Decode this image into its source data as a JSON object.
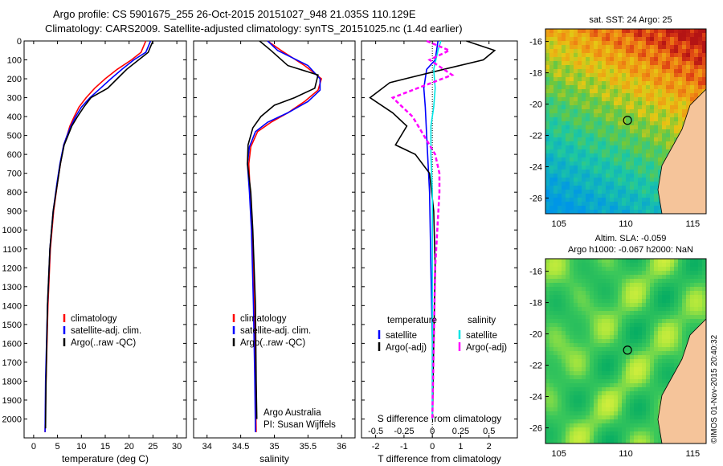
{
  "header": {
    "line1": "Argo profile: CS 5901675_255 26-Oct-2015 20151027_948 21.035S 110.129E",
    "line2": "Climatology: CARS2009. Satellite-adjusted climatology: synTS_20151025.nc (1.4d earlier)"
  },
  "colors": {
    "climatology": "#ff0000",
    "satellite": "#0000ff",
    "argo": "#000000",
    "sat_salinity": "#00e5e5",
    "argo_adj_salinity": "#ff00ff"
  },
  "chart_data": [
    {
      "type": "line",
      "id": "temperature",
      "xlabel": "temperature (deg C)",
      "xlim": [
        -2,
        32
      ],
      "xticks": [
        "0",
        "5",
        "10",
        "15",
        "20",
        "25",
        "30"
      ],
      "ylim": [
        0,
        2100
      ],
      "yticks": [
        "0",
        "100",
        "200",
        "300",
        "400",
        "500",
        "600",
        "700",
        "800",
        "900",
        "1000",
        "1100",
        "1200",
        "1300",
        "1400",
        "1500",
        "1600",
        "1700",
        "1800",
        "1900",
        "2000"
      ],
      "yreversed": true,
      "legend": {
        "placement": "lower-center",
        "entries": [
          "climatology",
          "satellite-adj. clim.",
          "Argo(..raw -QC)"
        ]
      },
      "series": [
        {
          "name": "climatology",
          "x": [
            23.5,
            23,
            22.5,
            20.5,
            17.5,
            15,
            12.8,
            11,
            9.5,
            8.5,
            7.6,
            7,
            6.3,
            5.6,
            5,
            4.2,
            3.5,
            3,
            2.6,
            2.4
          ],
          "y": [
            0,
            30,
            60,
            100,
            150,
            200,
            250,
            300,
            350,
            400,
            450,
            500,
            550,
            650,
            750,
            900,
            1100,
            1400,
            1800,
            2070
          ]
        },
        {
          "name": "satellite-adj. clim.",
          "x": [
            24.5,
            24,
            23.5,
            21,
            18.5,
            16.2,
            14,
            11.8,
            10,
            8.8,
            7.8,
            7,
            6.3,
            5.5,
            4.9,
            4.1,
            3.4,
            2.9,
            2.5,
            2.4
          ],
          "y": [
            0,
            30,
            60,
            100,
            150,
            200,
            250,
            300,
            350,
            400,
            450,
            500,
            550,
            650,
            750,
            900,
            1100,
            1400,
            1800,
            2070
          ]
        },
        {
          "name": "Argo(..raw -QC)",
          "x": [
            25,
            24.5,
            24,
            22,
            19.5,
            17.5,
            15.5,
            12,
            10.5,
            9.2,
            8,
            7.2,
            6.4,
            5.6,
            5,
            4.1,
            3.4,
            2.9,
            2.6,
            2.5
          ],
          "y": [
            0,
            30,
            60,
            100,
            150,
            200,
            250,
            300,
            350,
            400,
            450,
            500,
            550,
            650,
            750,
            900,
            1100,
            1400,
            1800,
            2050
          ]
        }
      ]
    },
    {
      "type": "line",
      "id": "salinity",
      "xlabel": "salinity",
      "xlim": [
        33.8,
        36.2
      ],
      "xticks": [
        "34",
        "34.5",
        "35",
        "35.5",
        "36"
      ],
      "ylim": [
        0,
        2100
      ],
      "yreversed": true,
      "legend": {
        "placement": "lower-center",
        "entries": [
          "climatology",
          "satellite-adj. clim.",
          "Argo(..raw -QC)"
        ]
      },
      "annotations": [
        "Argo Australia",
        "PI: Susan Wijffels"
      ],
      "series": [
        {
          "name": "climatology",
          "x": [
            34.9,
            35.1,
            35.45,
            35.7,
            35.65,
            35.45,
            35.2,
            34.95,
            34.75,
            34.65,
            34.62,
            34.64,
            34.67,
            34.7,
            34.72,
            34.73
          ],
          "y": [
            0,
            50,
            130,
            200,
            260,
            320,
            380,
            430,
            480,
            560,
            650,
            800,
            1000,
            1400,
            1800,
            2070
          ]
        },
        {
          "name": "satellite-adj. clim.",
          "x": [
            34.9,
            35.05,
            35.5,
            35.68,
            35.68,
            35.5,
            35.2,
            34.9,
            34.72,
            34.63,
            34.6,
            34.63,
            34.66,
            34.69,
            34.71,
            34.72
          ],
          "y": [
            0,
            50,
            130,
            200,
            260,
            320,
            380,
            430,
            480,
            560,
            650,
            800,
            1000,
            1400,
            1800,
            2070
          ]
        },
        {
          "name": "Argo(..raw -QC)",
          "x": [
            34.78,
            34.95,
            35.2,
            35.65,
            35.6,
            35.3,
            35.0,
            34.8,
            34.68,
            34.61,
            34.6,
            34.65,
            34.68,
            34.72,
            34.73,
            34.74
          ],
          "y": [
            0,
            50,
            130,
            180,
            250,
            300,
            340,
            400,
            460,
            550,
            650,
            800,
            1000,
            1400,
            1800,
            2000
          ]
        }
      ]
    },
    {
      "type": "line",
      "id": "difference",
      "xlabel": "T difference from climatology",
      "xlabel_top": "S difference from climatology",
      "xlim": [
        -2.5,
        3
      ],
      "xticks": [
        "-2",
        "-1",
        "0",
        "1",
        "2"
      ],
      "sticks": [
        "-0.5",
        "-0.25",
        "0",
        "0.25",
        "0.5"
      ],
      "ylim": [
        0,
        2100
      ],
      "yreversed": true,
      "legend": {
        "placement": "lower-center",
        "temperature_header": "temperature",
        "salinity_header": "salinity",
        "entries": [
          "satellite",
          "Argo(-adj)",
          "satellite",
          "Argo(-adj)"
        ]
      },
      "series": [
        {
          "name": "temperature satellite",
          "x": [
            0.2,
            0.15,
            0.1,
            -0.2,
            -0.3,
            -0.25,
            -0.2,
            -0.15,
            -0.1,
            -0.05,
            0,
            0
          ],
          "y": [
            0,
            50,
            100,
            150,
            250,
            350,
            500,
            650,
            800,
            1200,
            1600,
            2000
          ]
        },
        {
          "name": "temperature Argo(-adj)",
          "x": [
            1.2,
            2.2,
            1.8,
            0.4,
            -1.5,
            -2.2,
            -1.4,
            -0.9,
            -1.3,
            -0.6,
            -0.1,
            0.05,
            0.1,
            0.05,
            0
          ],
          "y": [
            0,
            50,
            100,
            150,
            220,
            300,
            380,
            450,
            550,
            600,
            700,
            900,
            1200,
            1600,
            2000
          ]
        },
        {
          "name": "salinity satellite",
          "x": [
            0.3,
            0.2,
            0.05,
            0.1,
            0.05,
            -0.05,
            -0.05,
            0,
            0,
            0
          ],
          "y": [
            0,
            50,
            150,
            250,
            350,
            450,
            600,
            800,
            1200,
            2000
          ]
        },
        {
          "name": "salinity Argo(-adj)",
          "x": [
            -0.2,
            0.6,
            -0.1,
            0.7,
            -1.4,
            -0.7,
            -0.3,
            0.1,
            0.25,
            0.25,
            0.1,
            0
          ],
          "y": [
            0,
            50,
            100,
            180,
            300,
            400,
            500,
            600,
            700,
            800,
            1200,
            2000
          ]
        }
      ]
    }
  ],
  "maps": {
    "sst": {
      "title": "sat. SST: 24 Argo: 25",
      "xticks": [
        "105",
        "110",
        "115"
      ],
      "yticks": [
        "-16",
        "-18",
        "-20",
        "-22",
        "-24",
        "-26"
      ]
    },
    "sla": {
      "title1": "Altim. SLA: -0.059",
      "title2": "Argo h1000: -0.067 h2000: NaN",
      "xticks": [
        "105",
        "110",
        "115"
      ],
      "yticks": [
        "-16",
        "-18",
        "-20",
        "-22",
        "-24",
        "-26"
      ]
    }
  },
  "credit": "©IMOS 01-Nov-2015 20:40:32"
}
